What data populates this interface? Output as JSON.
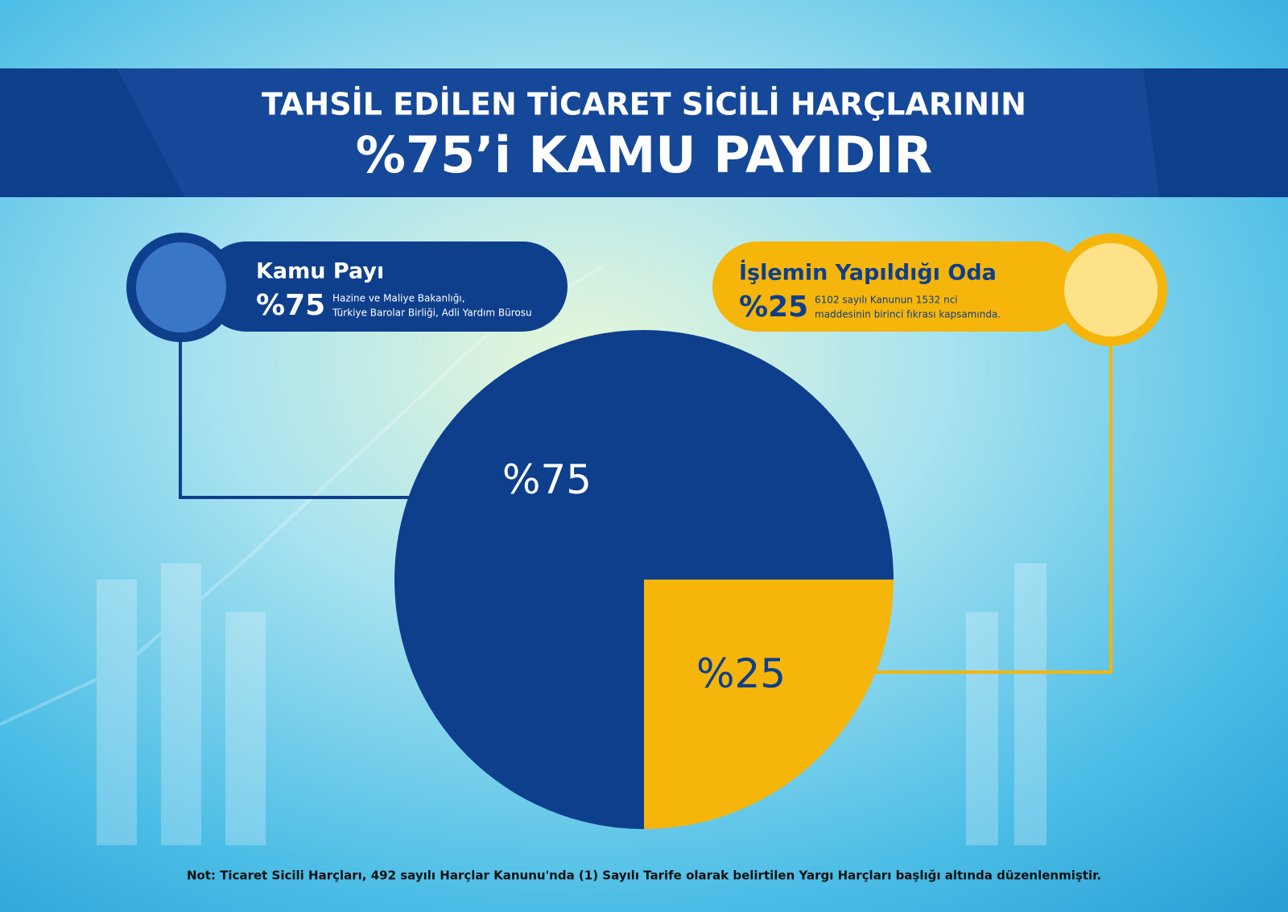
{
  "chart_data": {
    "type": "pie",
    "title": "TAHSİL EDİLEN TİCARET SİCİLİ HARÇLARININ",
    "subtitle": "%75’i KAMU PAYIDIR",
    "categories": [
      "Kamu Payı",
      "İşlemin Yapıldığı Oda"
    ],
    "values": [
      75,
      25
    ],
    "value_labels": [
      "%75",
      "%25"
    ],
    "colors": [
      "#0e3f8c",
      "#f5b50a"
    ],
    "descriptions": [
      [
        "Hazine ve Maliye Bakanlığı,",
        "Türkiye Barolar Birliği, Adli Yardım Bürosu"
      ],
      [
        "6102 sayılı Kanunun 1532 nci",
        "maddesinin birinci fıkrası kapsamında."
      ]
    ],
    "note": "Not: Ticaret Sicili Harçları, 492 sayılı Harçlar Kanunu'nda (1) Sayılı Tarife olarak belirtilen Yargı Harçları başlığı altında düzenlenmiştir."
  }
}
